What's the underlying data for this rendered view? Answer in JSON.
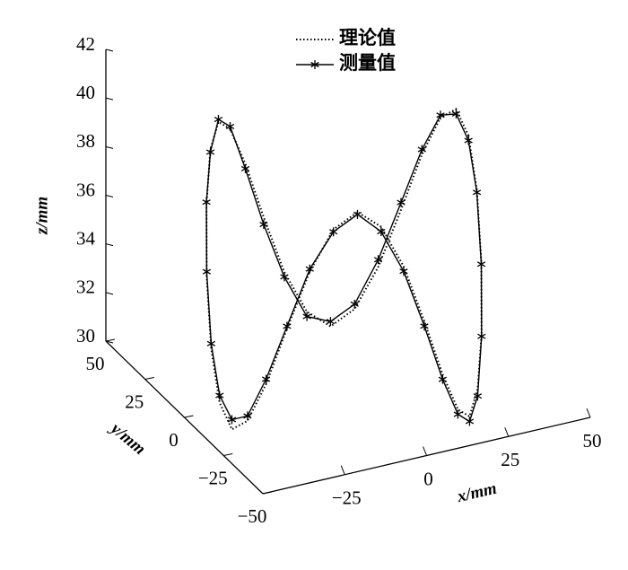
{
  "chart_data": {
    "type": "line3d",
    "xlabel": "x/mm",
    "ylabel": "y/mm",
    "zlabel": "z/mm",
    "xlim": [
      -50,
      50
    ],
    "ylim": [
      -50,
      50
    ],
    "zlim": [
      30,
      42
    ],
    "xticks": [
      {
        "value": -25,
        "label": "−25"
      },
      0,
      25,
      50
    ],
    "yticks": [
      {
        "value": -50,
        "label": "−50"
      },
      {
        "value": -25,
        "label": "−25"
      },
      0,
      25,
      50
    ],
    "zticks": [
      30,
      32,
      34,
      36,
      38,
      40,
      42
    ],
    "legend": "top",
    "series": [
      {
        "name": "理论值",
        "color": "#000000",
        "style": "dotted",
        "x": [
          31.0,
          30.4,
          28.7,
          25.9,
          22.1,
          17.4,
          12.0,
          6.0,
          -0.4,
          -7.0,
          -13.6,
          -20.0,
          -26.0,
          -31.4,
          -36.1,
          -39.9,
          -42.7,
          -44.4,
          -45.0,
          -44.4,
          -42.7,
          -39.9,
          -36.1,
          -31.4,
          -26.0,
          -20.0,
          -13.6,
          -7.0,
          -0.4,
          6.0,
          12.0,
          17.4,
          22.1,
          25.9,
          28.7,
          30.4
        ],
        "y": [
          -12.0,
          -5.4,
          1.0,
          7.0,
          12.4,
          17.1,
          20.9,
          23.7,
          25.4,
          26.0,
          25.4,
          23.7,
          20.9,
          17.1,
          12.4,
          7.0,
          1.0,
          -5.4,
          -12.0,
          -18.6,
          -25.0,
          -31.0,
          -36.4,
          -41.1,
          -44.9,
          -47.7,
          -49.4,
          -50.0,
          -49.4,
          -47.7,
          -44.9,
          -41.1,
          -36.4,
          -31.0,
          -25.0,
          -18.6
        ],
        "z": [
          39.8,
          40.5,
          39.8,
          38.0,
          35.5,
          33.0,
          31.2,
          30.5,
          31.2,
          33.0,
          35.5,
          38.0,
          39.8,
          40.5,
          39.8,
          38.0,
          35.5,
          33.0,
          31.2,
          30.5,
          31.2,
          33.0,
          35.5,
          38.0,
          39.8,
          40.5,
          39.8,
          38.0,
          35.5,
          33.0,
          31.2,
          30.5,
          31.2,
          33.0,
          35.5,
          38.0
        ]
      },
      {
        "name": "测量值",
        "color": "#000000",
        "style": "solid",
        "marker": "star",
        "x": [
          31.0,
          30.4,
          28.7,
          25.9,
          22.1,
          17.4,
          12.0,
          6.0,
          -0.4,
          -7.0,
          -13.6,
          -20.0,
          -26.0,
          -31.4,
          -36.1,
          -39.9,
          -42.7,
          -44.4,
          -45.0,
          -44.4,
          -42.7,
          -39.9,
          -36.1,
          -31.4,
          -26.0,
          -20.0,
          -13.6,
          -7.0,
          -0.4,
          6.0,
          12.0,
          17.4,
          22.1,
          25.9,
          28.7,
          30.4
        ],
        "y": [
          -12.0,
          -5.4,
          1.0,
          7.0,
          12.4,
          17.1,
          20.9,
          23.7,
          25.4,
          26.0,
          25.4,
          23.7,
          20.9,
          17.1,
          12.4,
          7.0,
          1.0,
          -5.4,
          -12.0,
          -18.6,
          -25.0,
          -31.0,
          -36.4,
          -41.1,
          -44.9,
          -47.7,
          -49.4,
          -50.0,
          -49.4,
          -47.7,
          -44.9,
          -41.1,
          -36.4,
          -31.0,
          -25.0,
          -18.6
        ],
        "z": [
          39.6,
          40.3,
          39.9,
          38.2,
          35.8,
          33.3,
          31.4,
          30.7,
          31.0,
          32.8,
          35.2,
          37.8,
          39.9,
          40.6,
          39.7,
          38.1,
          35.7,
          33.2,
          31.5,
          30.9,
          31.4,
          33.2,
          35.6,
          38.1,
          39.7,
          40.4,
          39.6,
          37.8,
          35.3,
          32.8,
          31.0,
          30.3,
          30.9,
          32.9,
          35.4,
          37.9
        ]
      }
    ]
  }
}
